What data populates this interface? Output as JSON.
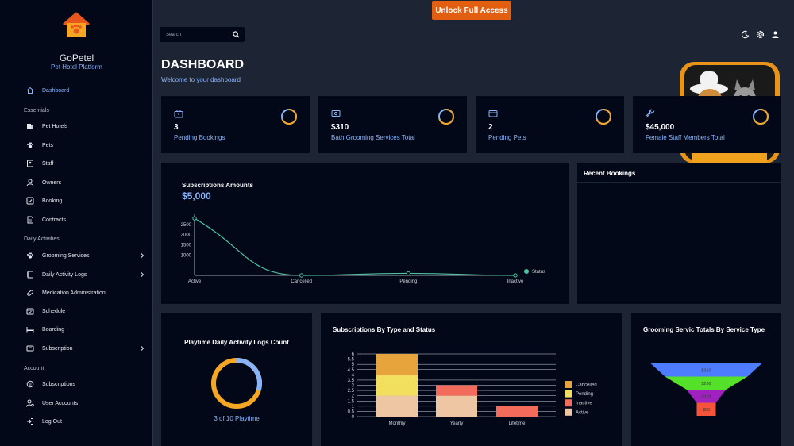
{
  "app": {
    "name": "GoPetel",
    "tagline": "Pet Hotel Platform"
  },
  "topbar": {
    "unlock_label": "Unlock Full Access",
    "search_placeholder": "Search"
  },
  "sidebar": {
    "dashboard": "Dashboard",
    "sections": {
      "essentials": "Essentials",
      "daily": "Daily Activities",
      "account": "Account"
    },
    "essentials": [
      "Pet Hotels",
      "Pets",
      "Staff",
      "Owners",
      "Booking",
      "Contracts"
    ],
    "daily": [
      "Grooming Services",
      "Daily Activity Logs",
      "Medication Administration",
      "Schedule",
      "Boarding",
      "Subscription"
    ],
    "account": [
      "Subscriptions",
      "User Accounts",
      "Log Out"
    ]
  },
  "page": {
    "title": "DASHBOARD",
    "subtitle": "Welcome to your dashboard"
  },
  "stats": [
    {
      "value": "3",
      "label": "Pending Bookings",
      "icon": "briefcase-icon"
    },
    {
      "value": "$310",
      "label": "Bath Grooming Services Total",
      "icon": "money-icon"
    },
    {
      "value": "2",
      "label": "Pending Pets",
      "icon": "card-icon"
    },
    {
      "value": "$45,000",
      "label": "Female Staff Members Total",
      "icon": "wrench-icon"
    }
  ],
  "colors": {
    "accent": "#8ab4f8",
    "ring": "#f5a623",
    "line": "#4fc3a1",
    "unlock": "#e25f12",
    "panel": "#030818",
    "bg": "#1d2535"
  },
  "subscriptions_panel": {
    "title": "Subscriptions Amounts",
    "amount": "$5,000"
  },
  "recent_bookings": {
    "title": "Recent Bookings"
  },
  "playtime": {
    "title": "Playtime Daily Activity Logs Count",
    "caption": "3 of 10 Playtime"
  },
  "by_type": {
    "title": "Subscriptions By Type and Status"
  },
  "grooming": {
    "title": "Grooming Servic Totals By Service Type"
  },
  "chart_data": [
    {
      "type": "line",
      "categories": [
        "Active",
        "Cancelled",
        "Pending",
        "Inactive"
      ],
      "series": [
        {
          "name": "Status",
          "values": [
            2800,
            0,
            100,
            0
          ]
        }
      ],
      "yticks": [
        1000,
        1500,
        2000,
        2500
      ],
      "ylim": [
        0,
        3000
      ],
      "legend": "right"
    },
    {
      "type": "pie",
      "values": [
        3,
        7
      ],
      "total": 10
    },
    {
      "type": "bar",
      "stacked": true,
      "categories": [
        "Monthly",
        "Yearly",
        "Lifetime"
      ],
      "series": [
        {
          "name": "Active",
          "values": [
            2,
            2,
            0
          ],
          "color": "#efc6a4"
        },
        {
          "name": "Inactive",
          "values": [
            0,
            1,
            1
          ],
          "color": "#f26b5b"
        },
        {
          "name": "Pending",
          "values": [
            2,
            0,
            0
          ],
          "color": "#f2df5e"
        },
        {
          "name": "Cancelled",
          "values": [
            2,
            0,
            0
          ],
          "color": "#e7a43d"
        }
      ],
      "yticks": [
        "0",
        "0.5",
        "1",
        "1.5",
        "2",
        "2.5",
        "3",
        "3.5",
        "4",
        "4.5",
        "5",
        "5.5",
        "6"
      ],
      "ylim": [
        0,
        6
      ],
      "legend": "right"
    },
    {
      "type": "funnel",
      "values": [
        310,
        230,
        110,
        50
      ],
      "labels": [
        "$310",
        "$230",
        "$110",
        "$50"
      ],
      "colors": [
        "#4d7cff",
        "#55e02a",
        "#a020c0",
        "#f5533a"
      ]
    }
  ]
}
